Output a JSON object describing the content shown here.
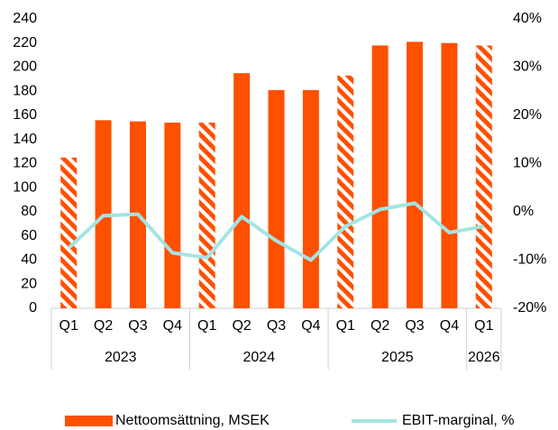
{
  "chart_data": {
    "type": "bar_line",
    "categories": [
      "Q1",
      "Q2",
      "Q3",
      "Q4",
      "Q1",
      "Q2",
      "Q3",
      "Q4",
      "Q1",
      "Q2",
      "Q3",
      "Q4",
      "Q1"
    ],
    "groups": [
      {
        "label": "2023",
        "count": 4
      },
      {
        "label": "2024",
        "count": 4
      },
      {
        "label": "2025",
        "count": 4
      },
      {
        "label": "2026",
        "count": 1
      }
    ],
    "series": [
      {
        "name": "Nettoomsättning, MSEK",
        "color": "#ff5000",
        "kind": "bar",
        "hatched": [
          true,
          false,
          false,
          false,
          true,
          false,
          false,
          false,
          true,
          false,
          false,
          false,
          true
        ],
        "values": [
          125,
          156,
          155,
          154,
          154,
          195,
          181,
          181,
          193,
          218,
          221,
          220,
          218
        ]
      },
      {
        "name": "EBIT-marginal, %",
        "color": "#a3e4e4",
        "kind": "line",
        "axis": "y2",
        "values": [
          -7.5,
          -0.8,
          -0.5,
          -8.5,
          -9.5,
          -1,
          -6,
          -10,
          -3,
          0.5,
          1.8,
          -4.3,
          -3
        ]
      }
    ],
    "ylim": [
      0,
      240
    ],
    "yticks": [
      0,
      20,
      40,
      60,
      80,
      100,
      120,
      140,
      160,
      180,
      200,
      220,
      240
    ],
    "y2lim": [
      -20,
      40
    ],
    "y2ticks": [
      {
        "value": -20,
        "label": "-20%"
      },
      {
        "value": -10,
        "label": "-10%"
      },
      {
        "value": 0,
        "label": "0%"
      },
      {
        "value": 10,
        "label": "10%"
      },
      {
        "value": 20,
        "label": "20%"
      },
      {
        "value": 30,
        "label": "30%"
      },
      {
        "value": 40,
        "label": "40%"
      }
    ],
    "legend": "bottom"
  }
}
